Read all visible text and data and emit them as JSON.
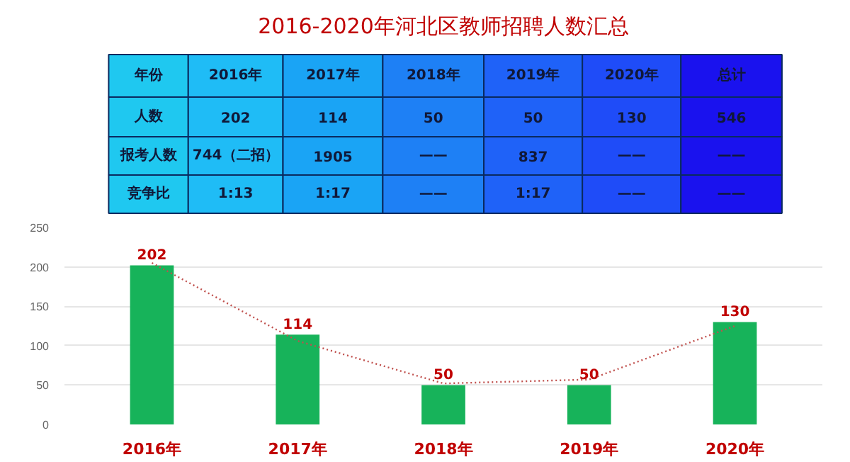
{
  "chart_data": {
    "type": "bar",
    "title": "2016-2020年河北区教师招聘人数汇总",
    "categories": [
      "2016年",
      "2017年",
      "2018年",
      "2019年",
      "2020年"
    ],
    "series": [
      {
        "color": "#17b35a",
        "values": [
          202,
          114,
          50,
          50,
          130
        ],
        "value_labels": [
          "202",
          "114",
          "50",
          "50",
          "130"
        ]
      },
      {
        "type": "line",
        "color": "#c0504d",
        "line_style": "dotted",
        "x": [
          "2016年",
          "2017年",
          "2018年",
          "2019年",
          "2020年"
        ],
        "values": [
          205,
          106,
          52,
          57,
          125
        ]
      }
    ],
    "ylim": [
      0,
      250
    ],
    "yticks": [
      0,
      50,
      100,
      150,
      200,
      250
    ],
    "grid": "y",
    "annotations": [
      "年份",
      "2016年",
      "2017年",
      "2018年",
      "2019年",
      "2020年",
      "总计",
      "人数",
      "202",
      "114",
      "50",
      "50",
      "130",
      "546",
      "报考人数",
      "744（二招）",
      "1905",
      "——",
      "837",
      "——",
      "——",
      "竞争比",
      "1:13",
      "1:17",
      "——",
      "1:17",
      "——",
      "——"
    ]
  }
}
